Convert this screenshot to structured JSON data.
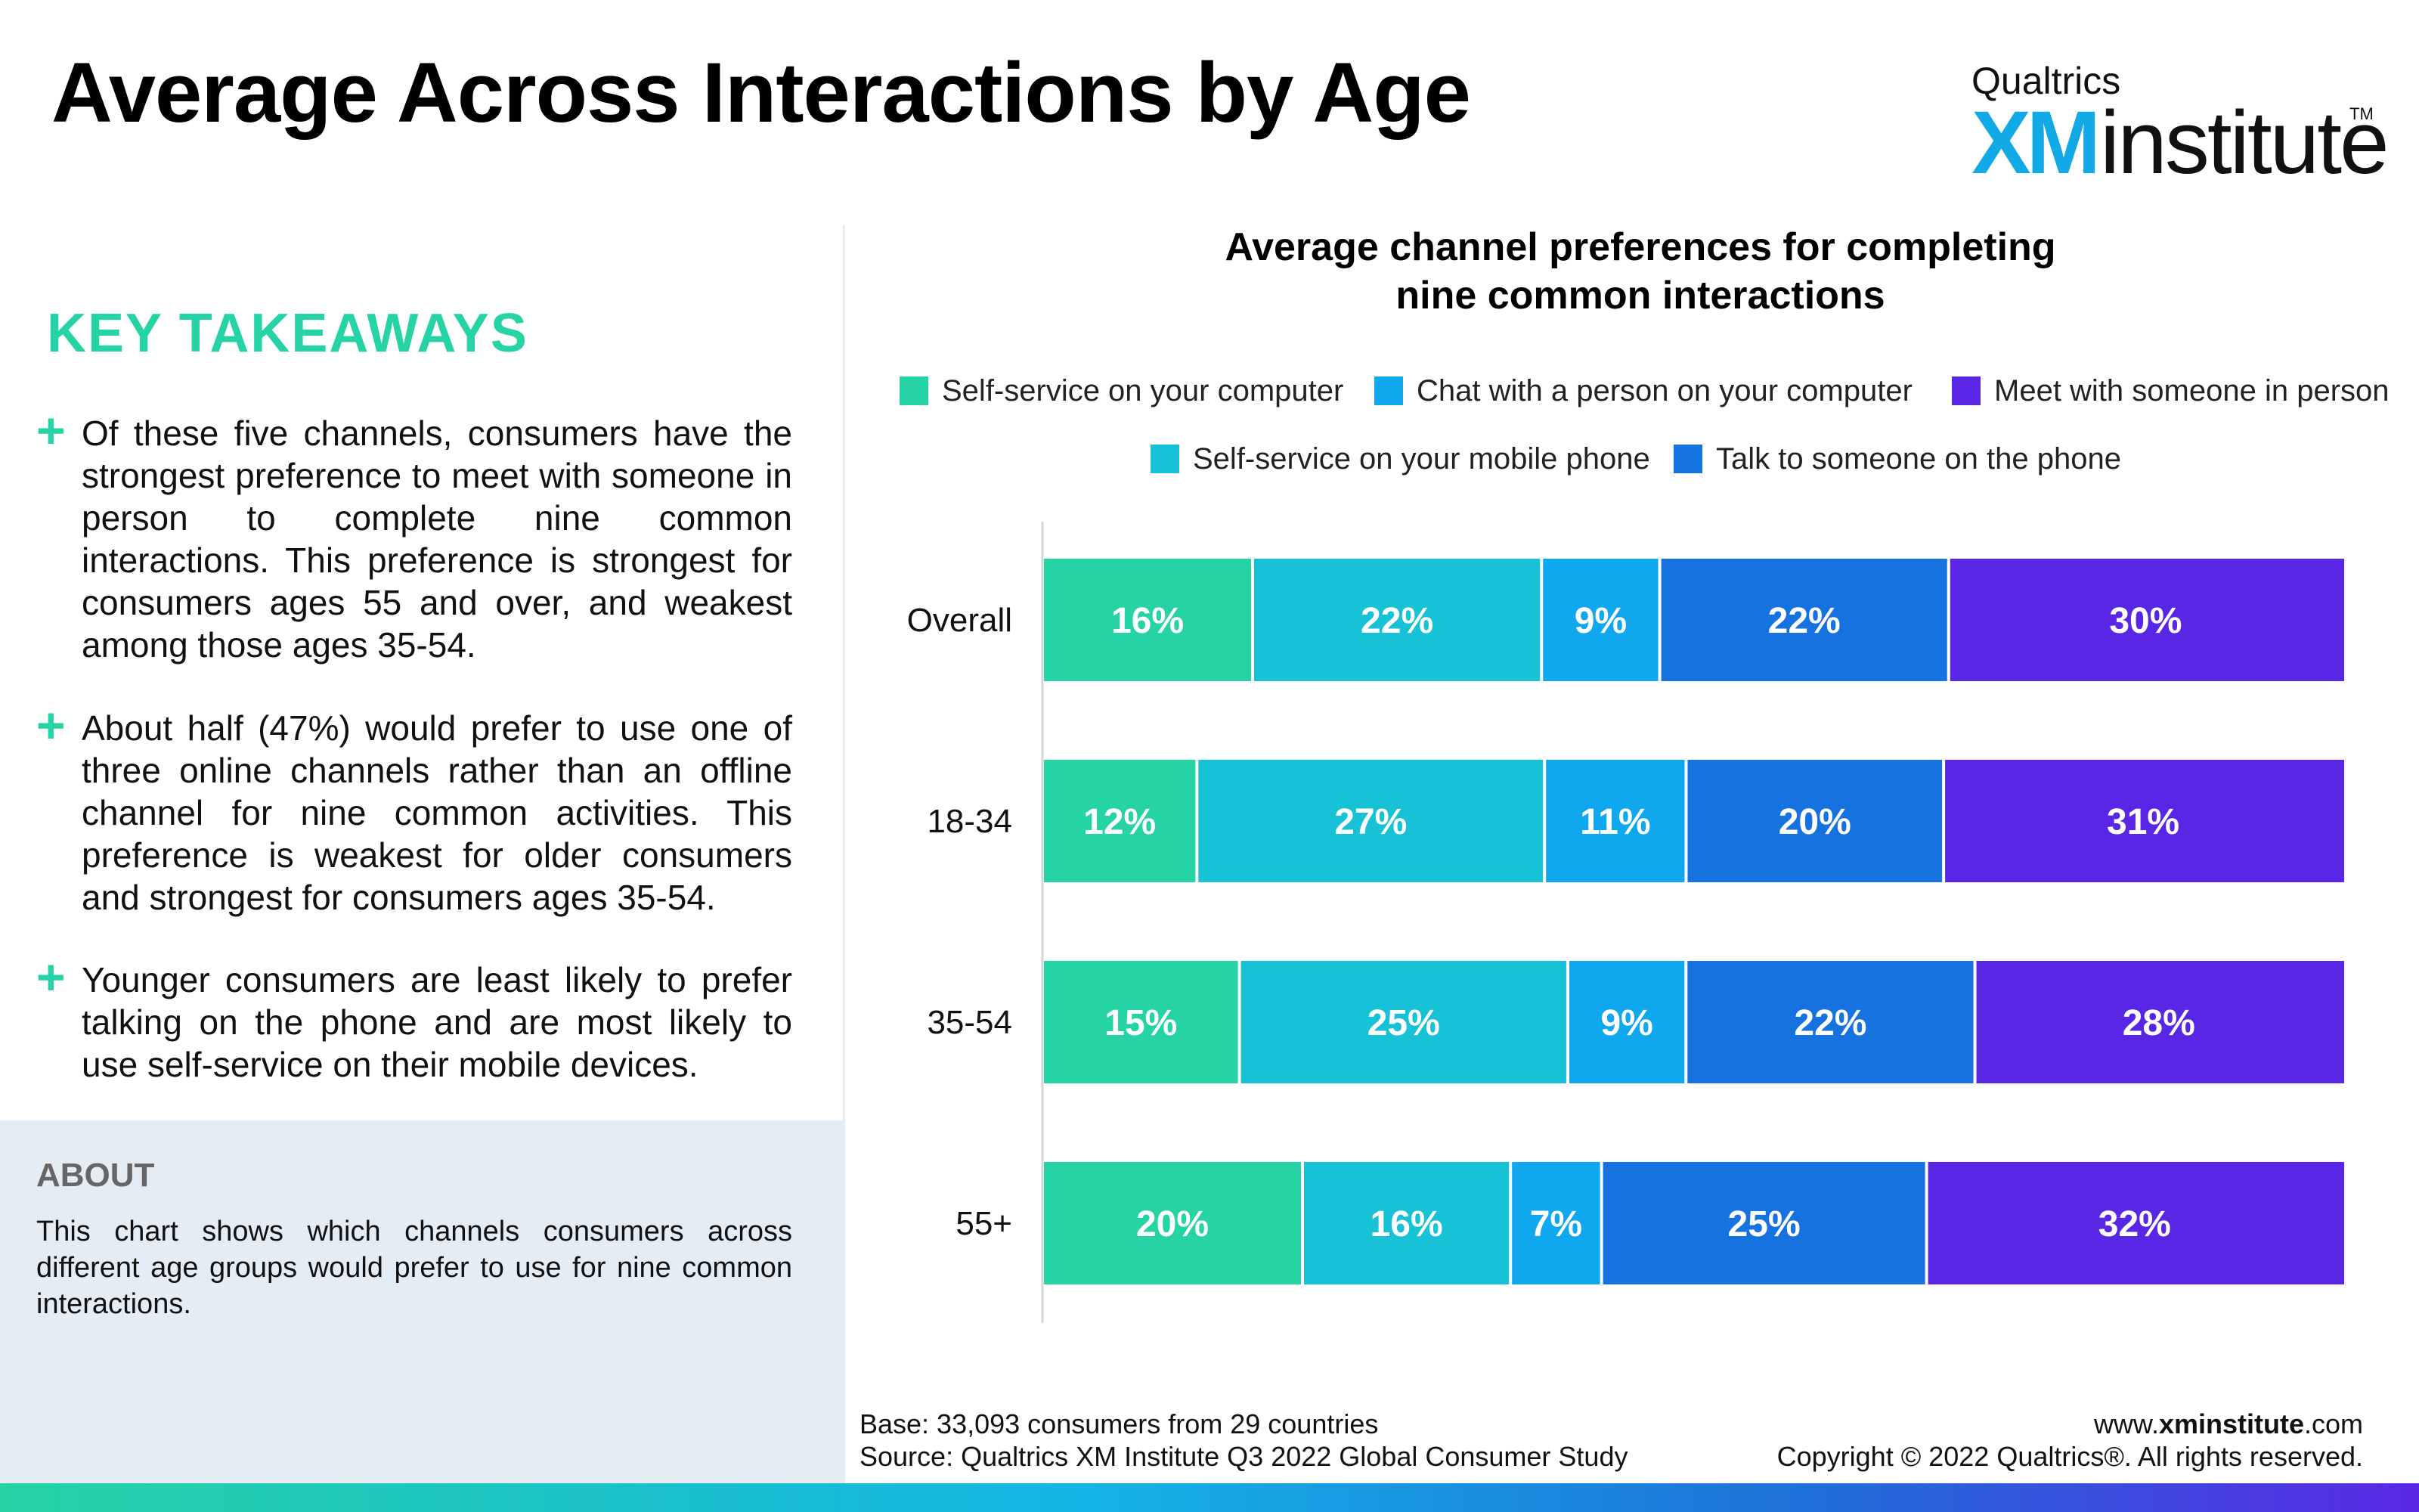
{
  "header": {
    "title": "Average Across Interactions by Age",
    "logo_brand": "Qualtrics",
    "logo_xm": "XM",
    "logo_word": "institute",
    "logo_tm": "TM"
  },
  "key_takeaways": {
    "title": "KEY TAKEAWAYS",
    "items": [
      "Of these five channels, consumers have the strongest preference to meet with someone in person to complete nine common interactions. This preference is strongest for consumers ages 55 and over, and weakest among those ages 35-54.",
      "About half (47%) would prefer to use one of three online channels rather than an offline channel for nine common activities. This preference is weakest for older consumers and strongest for consumers ages 35-54.",
      "Younger consumers are least likely to prefer talking on the phone and are most likely to use self-service on their mobile devices."
    ]
  },
  "about": {
    "title": "ABOUT",
    "text": "This chart shows which channels consumers across different age groups would prefer to use for nine common interactions."
  },
  "chart_data": {
    "type": "bar",
    "orientation": "horizontal",
    "stacked": true,
    "title_line1": "Average channel preferences for completing",
    "title_line2": "nine common interactions",
    "categories": [
      "Overall",
      "18-34",
      "35-54",
      "55+"
    ],
    "value_suffix": "%",
    "series": [
      {
        "name": "Self-service on your computer",
        "values": [
          16,
          12,
          15,
          20
        ],
        "color": "#25d3a4"
      },
      {
        "name": "Self-service on your mobile phone",
        "values": [
          22,
          27,
          25,
          16
        ],
        "color": "#17c2d6"
      },
      {
        "name": "Chat with a person on your computer",
        "values": [
          9,
          11,
          9,
          7
        ],
        "color": "#0fa8ef"
      },
      {
        "name": "Talk to someone on the phone",
        "values": [
          22,
          20,
          22,
          25
        ],
        "color": "#1672de"
      },
      {
        "name": "Meet with someone in person",
        "values": [
          30,
          31,
          28,
          32
        ],
        "color": "#5a26e6"
      }
    ],
    "legend_rows": [
      [
        "Self-service on your computer",
        "Chat with a person on your computer",
        "Meet with someone in person"
      ],
      [
        "Self-service on your mobile phone",
        "Talk to someone on the phone"
      ]
    ],
    "grid": false
  },
  "footer": {
    "base": "Base: 33,093 consumers from 29 countries",
    "source": "Source: Qualtrics XM Institute Q3 2022 Global Consumer Study",
    "url_prefix": "www.",
    "url_bold": "xminstitute",
    "url_suffix": ".com",
    "copyright": "Copyright © 2022 Qualtrics®. All rights reserved."
  }
}
